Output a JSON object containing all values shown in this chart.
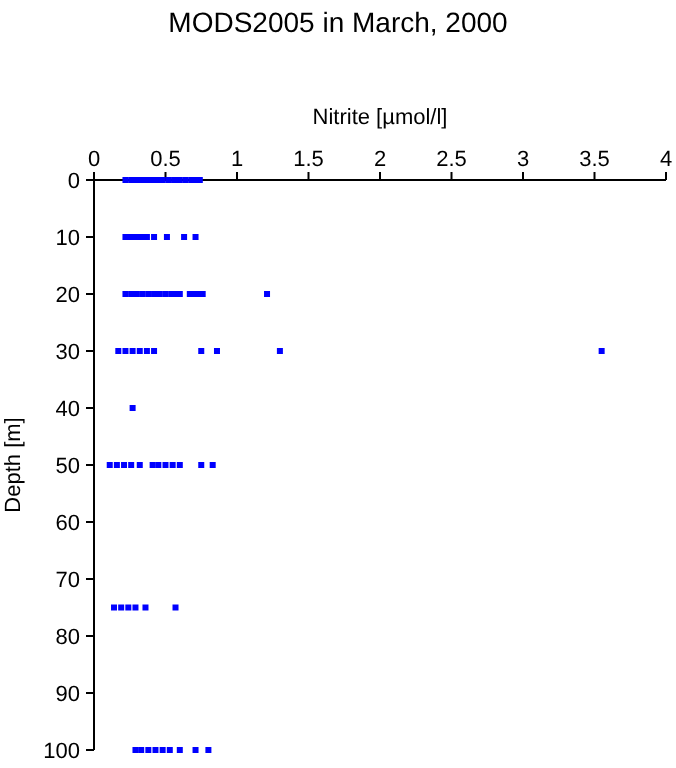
{
  "chart_data": {
    "type": "scatter",
    "title": "MODS2005 in March, 2000",
    "xlabel": "Nitrite [µmol/l]",
    "ylabel": "Depth [m]",
    "xlim": [
      0,
      4
    ],
    "xticks": [
      0,
      0.5,
      1,
      1.5,
      2,
      2.5,
      3,
      3.5,
      4
    ],
    "ylim": [
      100,
      0
    ],
    "yticks": [
      0,
      10,
      20,
      30,
      40,
      50,
      60,
      70,
      80,
      90,
      100
    ],
    "marker": "square",
    "grid": false,
    "series": [
      {
        "color": "#0000ff",
        "x": [
          0.22,
          0.26,
          0.3,
          0.33,
          0.36,
          0.39,
          0.42,
          0.45,
          0.48,
          0.52,
          0.56,
          0.6,
          0.64,
          0.68,
          0.72,
          0.74,
          0.22,
          0.25,
          0.28,
          0.31,
          0.34,
          0.37,
          0.42,
          0.51,
          0.63,
          0.71,
          0.22,
          0.26,
          0.3,
          0.34,
          0.38,
          0.42,
          0.46,
          0.5,
          0.54,
          0.58,
          0.6,
          0.67,
          0.7,
          0.73,
          0.76,
          1.21,
          0.17,
          0.22,
          0.27,
          0.32,
          0.37,
          0.42,
          0.75,
          0.86,
          1.3,
          3.55,
          0.27,
          0.11,
          0.16,
          0.21,
          0.26,
          0.32,
          0.41,
          0.45,
          0.5,
          0.55,
          0.6,
          0.75,
          0.83,
          0.14,
          0.19,
          0.24,
          0.29,
          0.36,
          0.57,
          0.29,
          0.33,
          0.38,
          0.43,
          0.48,
          0.53,
          0.6,
          0.71,
          0.8
        ],
        "values": [
          0,
          0,
          0,
          0,
          0,
          0,
          0,
          0,
          0,
          0,
          0,
          0,
          0,
          0,
          0,
          0,
          10,
          10,
          10,
          10,
          10,
          10,
          10,
          10,
          10,
          10,
          20,
          20,
          20,
          20,
          20,
          20,
          20,
          20,
          20,
          20,
          20,
          20,
          20,
          20,
          20,
          20,
          30,
          30,
          30,
          30,
          30,
          30,
          30,
          30,
          30,
          30,
          40,
          50,
          50,
          50,
          50,
          50,
          50,
          50,
          50,
          50,
          50,
          50,
          50,
          75,
          75,
          75,
          75,
          75,
          75,
          100,
          100,
          100,
          100,
          100,
          100,
          100,
          100,
          100
        ]
      }
    ]
  }
}
